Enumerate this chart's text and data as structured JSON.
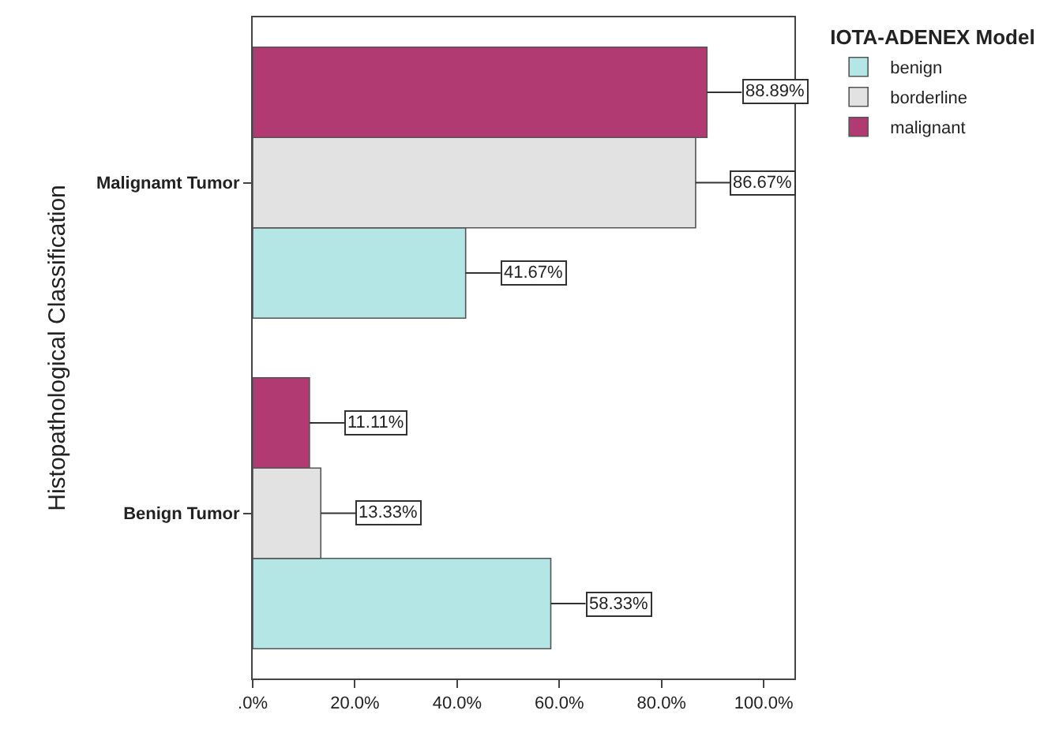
{
  "chart_data": {
    "type": "bar",
    "orientation": "horizontal",
    "ylabel": "Histopathological Classification",
    "legend_title": "IOTA-ADENEX Model",
    "legend": "top right",
    "categories": [
      "Malignamt Tumor",
      "Benign Tumor"
    ],
    "series": [
      {
        "name": "benign",
        "color": "#b4e6e6",
        "values": [
          41.67,
          58.33
        ],
        "value_labels": [
          "41.67%",
          "58.33%"
        ]
      },
      {
        "name": "borderline",
        "color": "#e2e2e2",
        "values": [
          86.67,
          13.33
        ],
        "value_labels": [
          "86.67%",
          "13.33%"
        ]
      },
      {
        "name": "malignant",
        "color": "#b23a72",
        "values": [
          88.89,
          11.11
        ],
        "value_labels": [
          "88.89%",
          "11.11%"
        ]
      }
    ],
    "xlim": [
      0,
      106
    ],
    "xticks": [
      {
        "value": 0,
        "label": ".0%"
      },
      {
        "value": 20,
        "label": "20.0%"
      },
      {
        "value": 40,
        "label": "40.0%"
      },
      {
        "value": 60,
        "label": "60.0%"
      },
      {
        "value": 80,
        "label": "80.0%"
      },
      {
        "value": 100,
        "label": "100.0%"
      }
    ],
    "grid": false
  }
}
